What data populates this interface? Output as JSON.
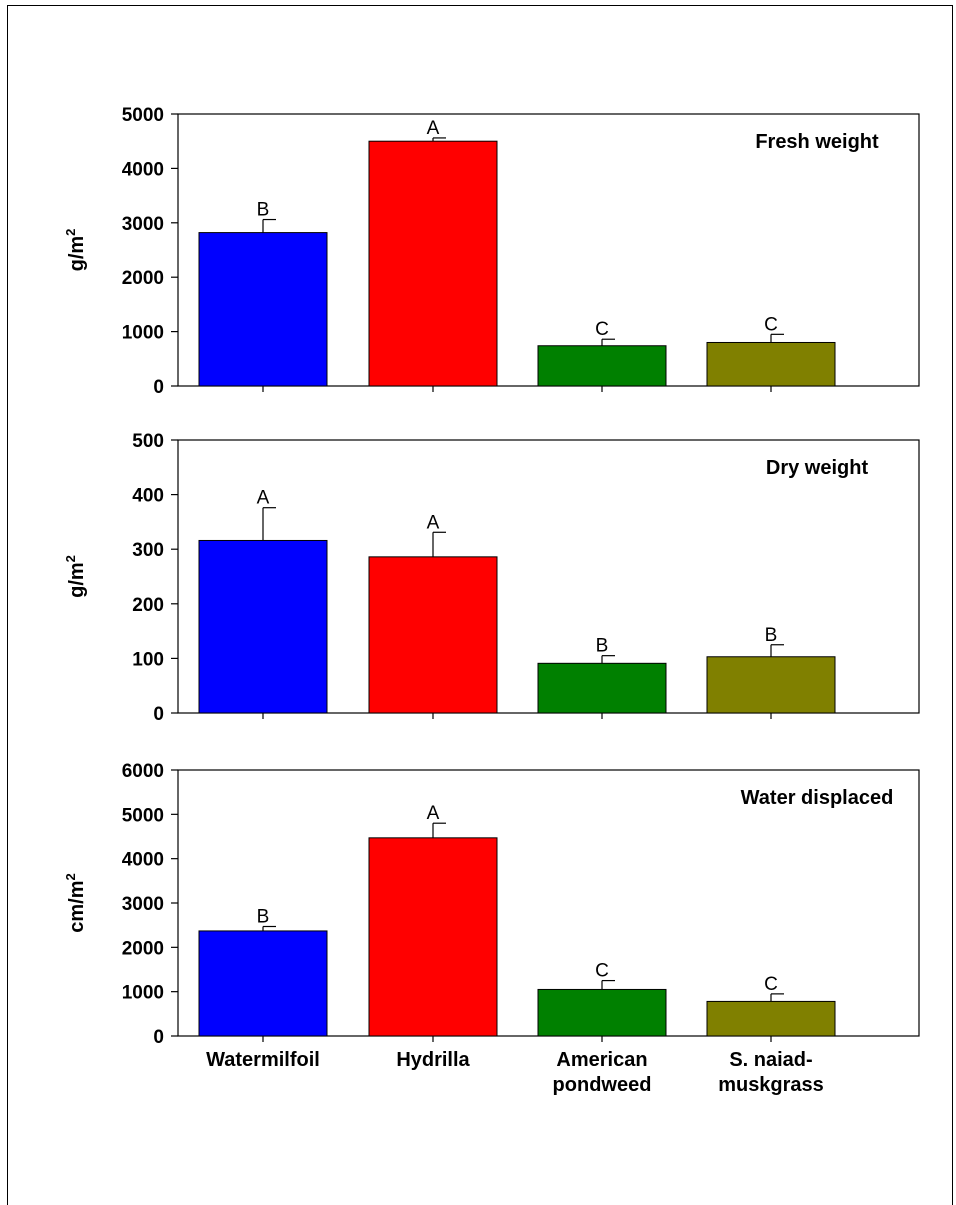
{
  "chart_data": [
    {
      "type": "bar",
      "title": "Fresh weight",
      "ylabel": "g/m",
      "ylabel_sup": "2",
      "ylim": [
        0,
        5000
      ],
      "yticks": [
        0,
        1000,
        2000,
        3000,
        4000,
        5000
      ],
      "categories": [
        "Watermilfoil",
        "Hydrilla",
        "American pondweed",
        "S. naiad-muskgrass"
      ],
      "values": [
        2820,
        4500,
        740,
        800
      ],
      "errors": [
        240,
        60,
        120,
        150
      ],
      "letters": [
        "B",
        "A",
        "C",
        "C"
      ],
      "colors": [
        "#0000ff",
        "#ff0000",
        "#008000",
        "#808000"
      ]
    },
    {
      "type": "bar",
      "title": "Dry weight",
      "ylabel": "g/m",
      "ylabel_sup": "2",
      "ylim": [
        0,
        500
      ],
      "yticks": [
        0,
        100,
        200,
        300,
        400,
        500
      ],
      "categories": [
        "Watermilfoil",
        "Hydrilla",
        "American pondweed",
        "S. naiad-muskgrass"
      ],
      "values": [
        316,
        286,
        91,
        103
      ],
      "errors": [
        60,
        45,
        14,
        22
      ],
      "letters": [
        "A",
        "A",
        "B",
        "B"
      ],
      "colors": [
        "#0000ff",
        "#ff0000",
        "#008000",
        "#808000"
      ]
    },
    {
      "type": "bar",
      "title": "Water displaced",
      "ylabel": "cm/m",
      "ylabel_sup": "2",
      "ylim": [
        0,
        6000
      ],
      "yticks": [
        0,
        1000,
        2000,
        3000,
        4000,
        5000,
        6000
      ],
      "categories": [
        "Watermilfoil",
        "Hydrilla",
        "American pondweed",
        "S. naiad-muskgrass"
      ],
      "category_lines": [
        [
          "Watermilfoil"
        ],
        [
          "Hydrilla"
        ],
        [
          "American",
          "pondweed"
        ],
        [
          "S. naiad-",
          "muskgrass"
        ]
      ],
      "values": [
        2370,
        4470,
        1050,
        780
      ],
      "errors": [
        100,
        330,
        200,
        170
      ],
      "letters": [
        "B",
        "A",
        "C",
        "C"
      ],
      "colors": [
        "#0000ff",
        "#ff0000",
        "#008000",
        "#808000"
      ]
    }
  ]
}
